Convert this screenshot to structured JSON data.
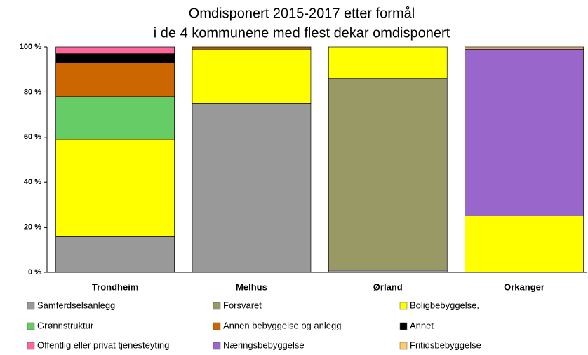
{
  "chart_data": {
    "type": "stacked_bar",
    "title": [
      "Omdisponert 2015-2017 etter formål",
      "i de 4 kommunene med flest  dekar omdisponert"
    ],
    "categories": [
      "Trondheim",
      "Melhus",
      "Ørland",
      "Orkanger"
    ],
    "series": [
      {
        "name": "Samferdselsanlegg",
        "color": "#999999",
        "values": [
          16,
          75,
          1,
          0
        ]
      },
      {
        "name": "Forsvaret",
        "color": "#999966",
        "values": [
          0,
          0,
          85,
          0
        ]
      },
      {
        "name": "Boligbebyggelse,",
        "color": "#ffff00",
        "values": [
          43,
          24,
          14,
          25
        ]
      },
      {
        "name": "Grønnstruktur",
        "color": "#66cc66",
        "values": [
          19,
          0,
          0,
          0
        ]
      },
      {
        "name": "Annen bebyggelse og anlegg",
        "color": "#cc6600",
        "values": [
          15,
          1,
          0,
          0
        ]
      },
      {
        "name": "Annet",
        "color": "#000000",
        "values": [
          4,
          0,
          0,
          0
        ]
      },
      {
        "name": "Offentlig eller privat tjenesteyting",
        "color": "#ff6699",
        "values": [
          3,
          0,
          0,
          0
        ]
      },
      {
        "name": "Næringsbebyggelse",
        "color": "#9966cc",
        "values": [
          0,
          0,
          0,
          74
        ]
      },
      {
        "name": "Fritidsbebyggelse",
        "color": "#ffcc66",
        "values": [
          0,
          0,
          0,
          1
        ]
      }
    ],
    "ylim": [
      0,
      100
    ],
    "yticks": [
      {
        "value": 0,
        "label": "0 %"
      },
      {
        "value": 20,
        "label": "20 %"
      },
      {
        "value": 40,
        "label": "40 %"
      },
      {
        "value": 60,
        "label": "60 %"
      },
      {
        "value": 80,
        "label": "80 %"
      },
      {
        "value": 100,
        "label": "100 %"
      }
    ],
    "legend": "bottom"
  }
}
